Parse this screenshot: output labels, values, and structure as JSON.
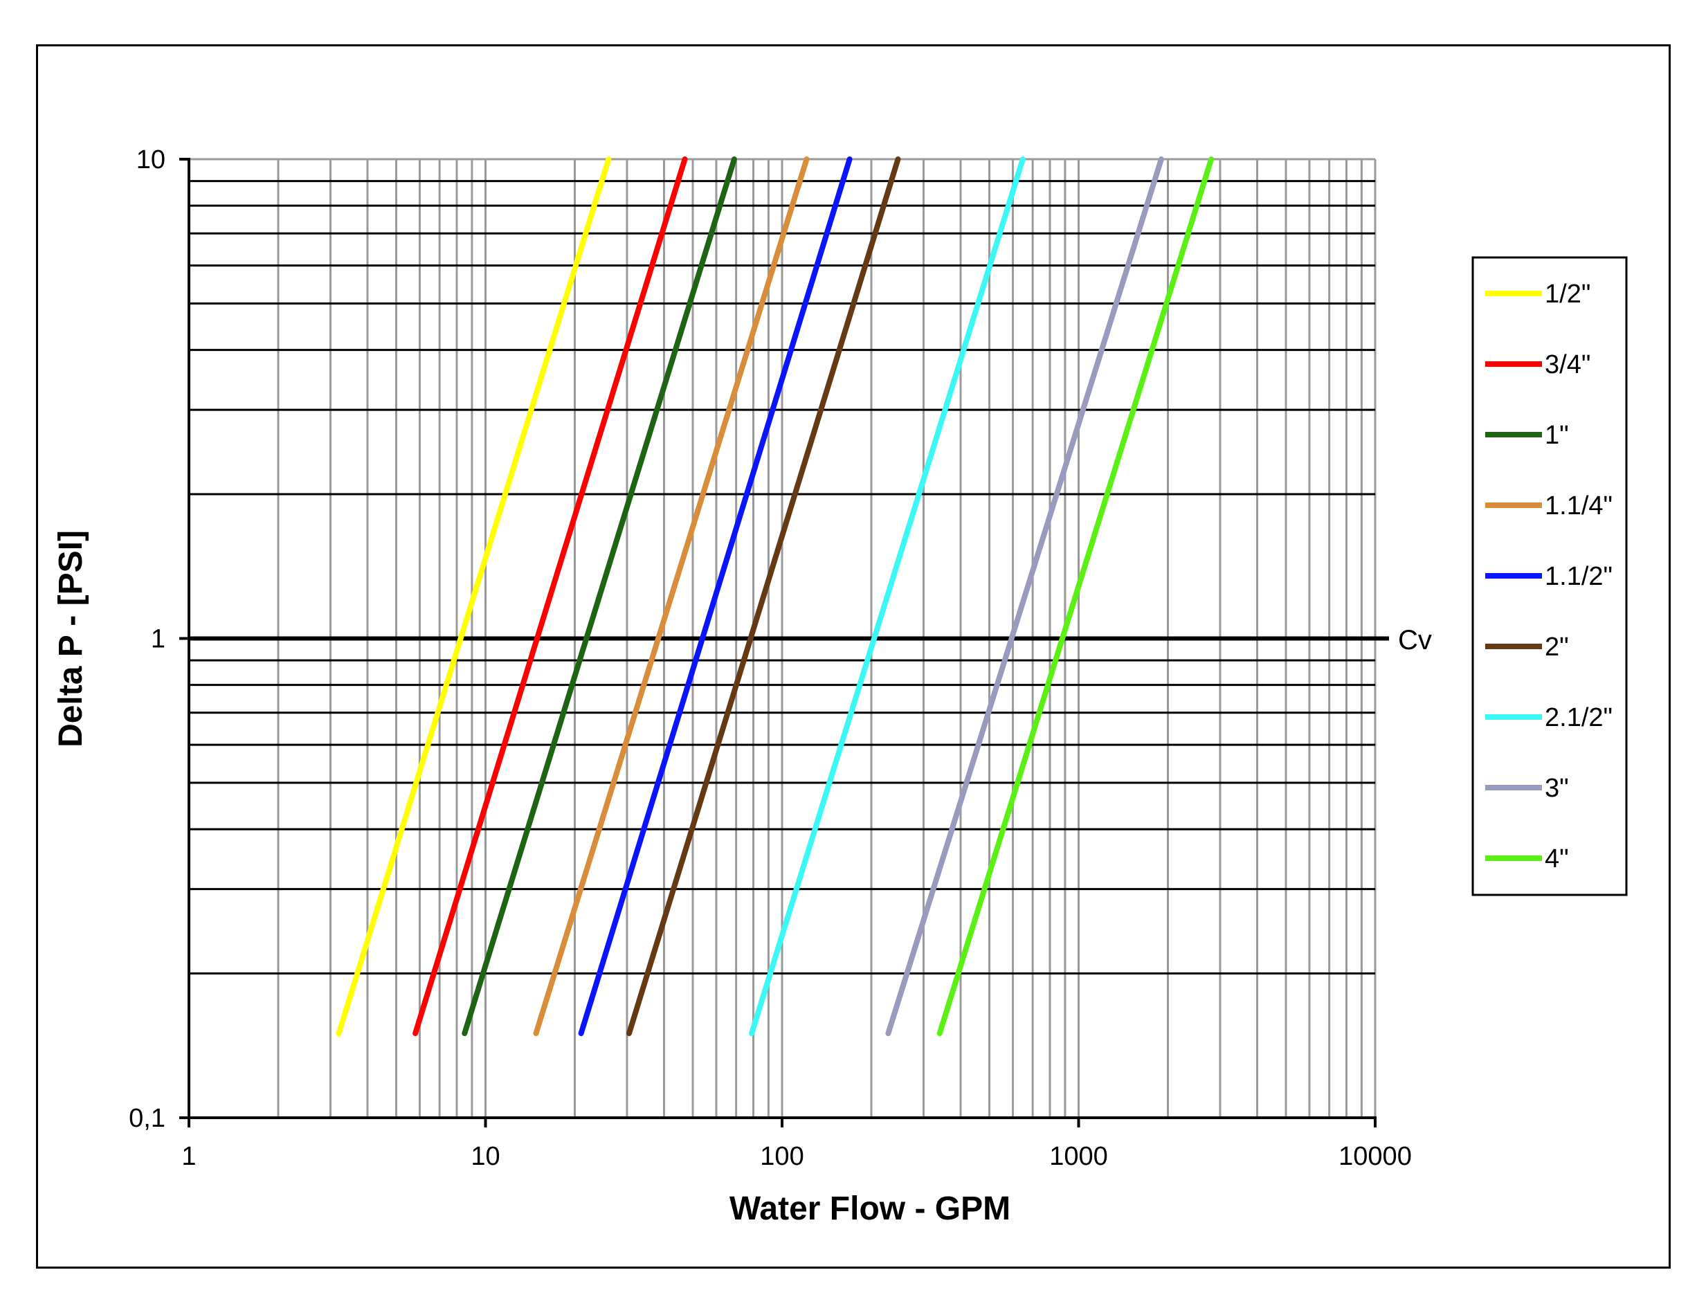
{
  "chart_data": {
    "type": "line",
    "xlabel": "Water Flow  - GPM",
    "ylabel": "Delta P - [PSI]",
    "xscale": "log",
    "yscale": "log",
    "xlim": [
      1,
      10000
    ],
    "ylim": [
      0.1,
      10
    ],
    "grid": true,
    "legend_position": "right",
    "x_tick_labels": [
      "1",
      "10",
      "100",
      "1000",
      "10000"
    ],
    "y_tick_labels": [
      "0,1",
      "1",
      "10"
    ],
    "reference_line": {
      "y": 1,
      "label": "Cv"
    },
    "series": [
      {
        "name": "1/2\"",
        "color": "#FFFF00",
        "x": [
          3.2,
          26.0
        ],
        "y": [
          0.15,
          10
        ]
      },
      {
        "name": "3/4\"",
        "color": "#FF0000",
        "x": [
          5.8,
          47.0
        ],
        "y": [
          0.15,
          10
        ]
      },
      {
        "name": "1\"",
        "color": "#1E6414",
        "x": [
          8.5,
          69.0
        ],
        "y": [
          0.15,
          10
        ]
      },
      {
        "name": "1.1/4\"",
        "color": "#D98C3A",
        "x": [
          14.8,
          121.0
        ],
        "y": [
          0.15,
          10
        ]
      },
      {
        "name": "1.1/2\"",
        "color": "#0A14FF",
        "x": [
          21.0,
          169.0
        ],
        "y": [
          0.15,
          10
        ]
      },
      {
        "name": "2\"",
        "color": "#643A14",
        "x": [
          30.5,
          246.0
        ],
        "y": [
          0.15,
          10
        ]
      },
      {
        "name": "2.1/2\"",
        "color": "#3CF8F5",
        "x": [
          79.0,
          648.0
        ],
        "y": [
          0.15,
          10
        ]
      },
      {
        "name": "3\"",
        "color": "#9A9ABE",
        "x": [
          228.0,
          1900.0
        ],
        "y": [
          0.15,
          10
        ]
      },
      {
        "name": "4\"",
        "color": "#5AF014",
        "x": [
          340.0,
          2800.0
        ],
        "y": [
          0.15,
          10
        ]
      }
    ]
  }
}
